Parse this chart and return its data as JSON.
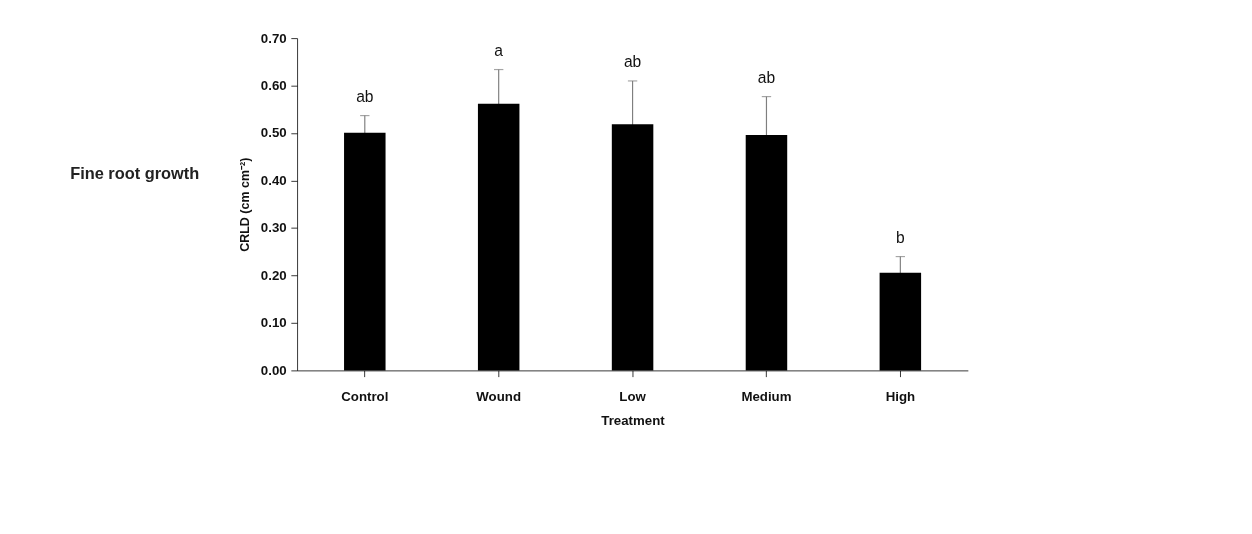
{
  "chart_data": {
    "type": "bar",
    "title": "Fine root growth",
    "xlabel": "Treatment",
    "ylabel": "CRLD (cm cm⁻²)",
    "categories": [
      "Control",
      "Wound",
      "Low",
      "Medium",
      "High"
    ],
    "values": [
      0.501,
      0.562,
      0.519,
      0.496,
      0.206
    ],
    "errors": [
      0.036,
      0.072,
      0.091,
      0.081,
      0.034
    ],
    "color": "#000000",
    "ylim": [
      0,
      0.7
    ],
    "yticks": [
      {
        "value": 0,
        "label": "0.00"
      },
      {
        "value": 0.1,
        "label": "0.10"
      },
      {
        "value": 0.2,
        "label": "0.20"
      },
      {
        "value": 0.3,
        "label": "0.30"
      },
      {
        "value": 0.4,
        "label": "0.40"
      },
      {
        "value": 0.5,
        "label": "0.50"
      },
      {
        "value": 0.6,
        "label": "0.60"
      },
      {
        "value": 0.7,
        "label": "0.70"
      }
    ],
    "grid": false,
    "annotations": [
      {
        "text": "ab",
        "x": "Control",
        "y": 0.537
      },
      {
        "text": "a",
        "x": "Wound",
        "y": 0.634
      },
      {
        "text": "ab",
        "x": "Low",
        "y": 0.61
      },
      {
        "text": "ab",
        "x": "Medium",
        "y": 0.577
      },
      {
        "text": "b",
        "x": "High",
        "y": 0.24
      }
    ]
  }
}
